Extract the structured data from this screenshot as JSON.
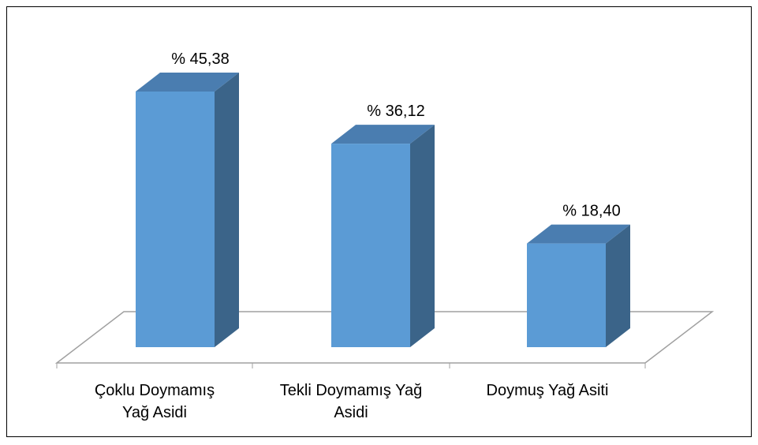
{
  "chart_data": {
    "type": "bar3d",
    "categories": [
      "Çoklu Doymamış Yağ Asidi",
      "Tekli Doymamış Yağ Asidi",
      "Doymuş Yağ Asiti"
    ],
    "values": [
      45.38,
      36.12,
      18.4
    ],
    "value_labels": [
      "% 45,38",
      "% 36,12",
      "% 18,40"
    ],
    "color": "#5b9bd5"
  }
}
